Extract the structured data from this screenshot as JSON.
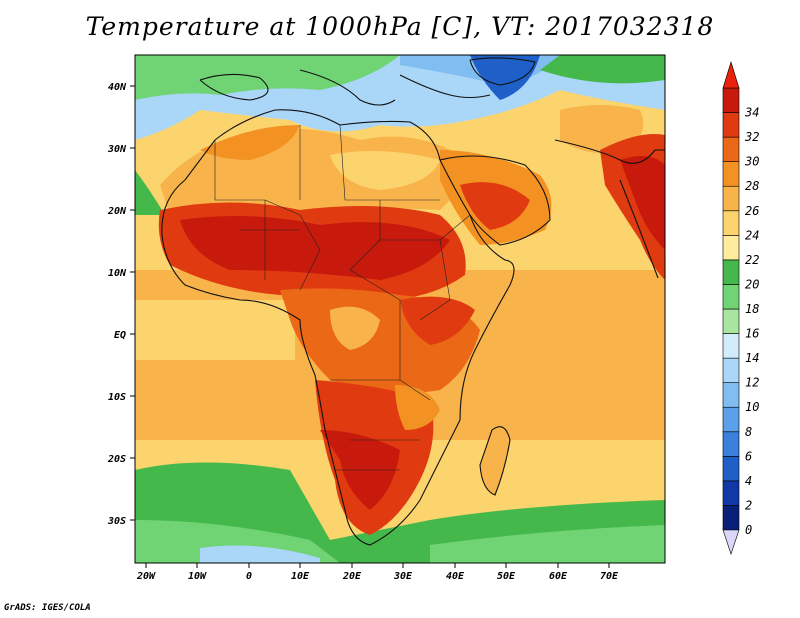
{
  "title": "Temperature at 1000hPa [C], VT: 2017032318",
  "footer": "GrADS: IGES/COLA",
  "map": {
    "lon_range": [
      -23,
      80
    ],
    "lat_range": [
      -36,
      45
    ],
    "lon_ticks": [
      "20W",
      "10W",
      "0",
      "10E",
      "20E",
      "30E",
      "40E",
      "50E",
      "60E",
      "70E"
    ],
    "lat_ticks": [
      "40N",
      "30N",
      "20N",
      "10N",
      "EQ",
      "10S",
      "20S",
      "30S"
    ]
  },
  "colorbar": {
    "labels": [
      "0",
      "2",
      "4",
      "6",
      "8",
      "10",
      "12",
      "14",
      "16",
      "18",
      "20",
      "22",
      "24",
      "26",
      "28",
      "30",
      "32",
      "34"
    ],
    "colors": [
      "#0a1f7a",
      "#1238a8",
      "#1f5fc8",
      "#3a80dc",
      "#5aa0ea",
      "#80bef2",
      "#aad6f8",
      "#d2ecfb",
      "#a8e6a0",
      "#70d474",
      "#44b84a",
      "#ffec9c",
      "#fcd46e",
      "#f8b44a",
      "#f39222",
      "#ea6816",
      "#e03a10",
      "#c81a0c"
    ]
  }
}
